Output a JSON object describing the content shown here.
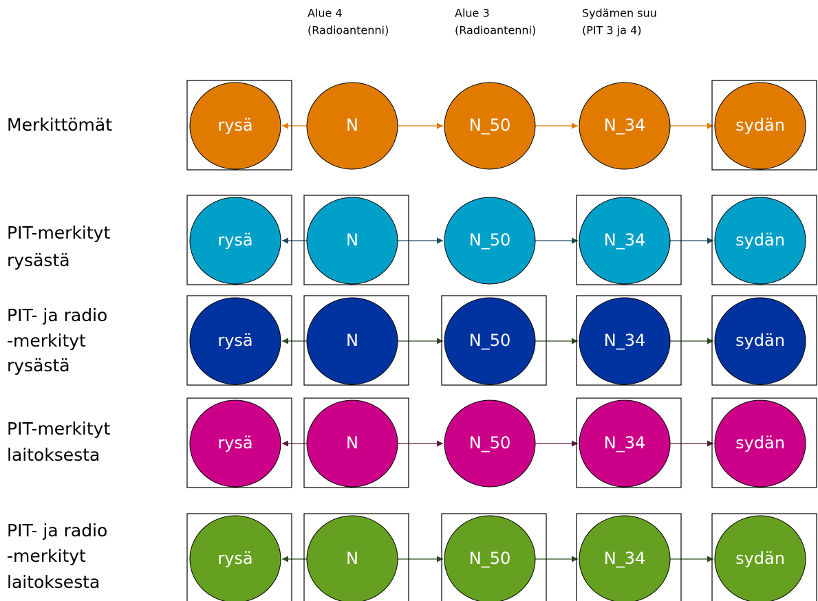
{
  "headers": [
    [
      "Alue 4",
      "(Radioantenni)"
    ],
    [
      "Alue 3",
      "(Radioantenni)"
    ],
    [
      "Sydämen suu",
      "(PIT 3 ja 4)"
    ]
  ],
  "rows": [
    {
      "label": [
        "Merkittömät"
      ],
      "color": "#e07b00",
      "arrow_color": "#e07b00",
      "nodes": [
        {
          "label": "rysä",
          "boxed": true
        },
        {
          "label": "N",
          "boxed": false
        },
        {
          "label": "N_50",
          "boxed": false
        },
        {
          "label": "N_34",
          "boxed": false
        },
        {
          "label": "sydän",
          "boxed": true
        }
      ]
    },
    {
      "label": [
        "PIT-merkityt",
        "rysästä"
      ],
      "color": "#00a0c8",
      "arrow_color": "#1d4a5c",
      "nodes": [
        {
          "label": "rysä",
          "boxed": true
        },
        {
          "label": "N",
          "boxed": true
        },
        {
          "label": "N_50",
          "boxed": false
        },
        {
          "label": "N_34",
          "boxed": true
        },
        {
          "label": "sydän",
          "boxed": true
        }
      ]
    },
    {
      "label": [
        "PIT- ja radio",
        "-merkityt",
        "rysästä"
      ],
      "color": "#0033a0",
      "arrow_color": "#2a4a1c",
      "nodes": [
        {
          "label": "rysä",
          "boxed": true
        },
        {
          "label": "N",
          "boxed": true
        },
        {
          "label": "N_50",
          "boxed": true
        },
        {
          "label": "N_34",
          "boxed": true
        },
        {
          "label": "sydän",
          "boxed": true
        }
      ]
    },
    {
      "label": [
        "PIT-merkityt",
        "laitoksesta"
      ],
      "color": "#cc0088",
      "arrow_color": "#5a1a3a",
      "nodes": [
        {
          "label": "rysä",
          "boxed": true
        },
        {
          "label": "N",
          "boxed": true
        },
        {
          "label": "N_50",
          "boxed": false
        },
        {
          "label": "N_34",
          "boxed": true
        },
        {
          "label": "sydän",
          "boxed": true
        }
      ]
    },
    {
      "label": [
        "PIT- ja radio",
        "-merkityt",
        "laitoksesta"
      ],
      "color": "#66a020",
      "arrow_color": "#2a4a1c",
      "nodes": [
        {
          "label": "rysä",
          "boxed": true
        },
        {
          "label": "N",
          "boxed": true
        },
        {
          "label": "N_50",
          "boxed": true
        },
        {
          "label": "N_34",
          "boxed": true
        },
        {
          "label": "sydän",
          "boxed": true
        }
      ]
    }
  ]
}
